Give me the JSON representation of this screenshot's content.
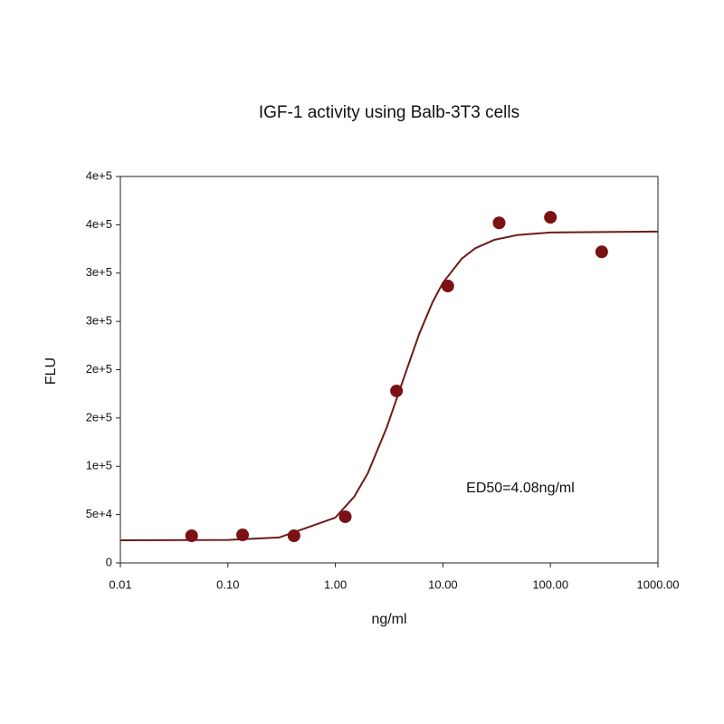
{
  "chart_data": {
    "type": "scatter",
    "title": "IGF-1 activity using Balb-3T3 cells",
    "x_label": "ng/ml",
    "y_label": "FLU",
    "annotation": "ED50=4.08ng/ml",
    "xscale": "log",
    "xlim": [
      0.01,
      1000
    ],
    "xticks": [
      0.01,
      {
        "value": 0.1,
        "label": "0.10"
      },
      {
        "value": 1,
        "label": "1.00"
      },
      {
        "value": 10,
        "label": "10.00"
      },
      {
        "value": 100,
        "label": "100.00"
      },
      {
        "value": 1000,
        "label": "1000.00"
      }
    ],
    "ylim": [
      0,
      400000
    ],
    "yticks": [
      0,
      {
        "value": 50000,
        "label": "5e+4"
      },
      {
        "value": 100000,
        "label": "1e+5"
      },
      {
        "value": 150000,
        "label": "2e+5"
      },
      {
        "value": 200000,
        "label": "2e+5"
      },
      {
        "value": 250000,
        "label": "3e+5"
      },
      {
        "value": 300000,
        "label": "3e+5"
      },
      {
        "value": 350000,
        "label": "4e+5"
      },
      {
        "value": 400000,
        "label": "4e+5"
      }
    ],
    "series": [
      {
        "type": "scatter",
        "color": "#7b1113",
        "x": [
          0.046,
          0.137,
          0.412,
          1.235,
          3.704,
          11.111,
          33.333,
          100,
          300
        ],
        "values": [
          28100,
          29000,
          28100,
          47800,
          178000,
          286600,
          352000,
          357700,
          322000
        ]
      },
      {
        "type": "line",
        "color": "#6e1a1a",
        "x": [
          0.01,
          0.1,
          0.3,
          1,
          1.5,
          2,
          3,
          4.08,
          6,
          8,
          10,
          15,
          20,
          30,
          50,
          100,
          1000
        ],
        "values": [
          23400,
          23800,
          26300,
          46950,
          68700,
          92700,
          140000,
          183200,
          236600,
          269700,
          290000,
          315000,
          325700,
          334400,
          339500,
          342000,
          343000
        ]
      }
    ]
  }
}
